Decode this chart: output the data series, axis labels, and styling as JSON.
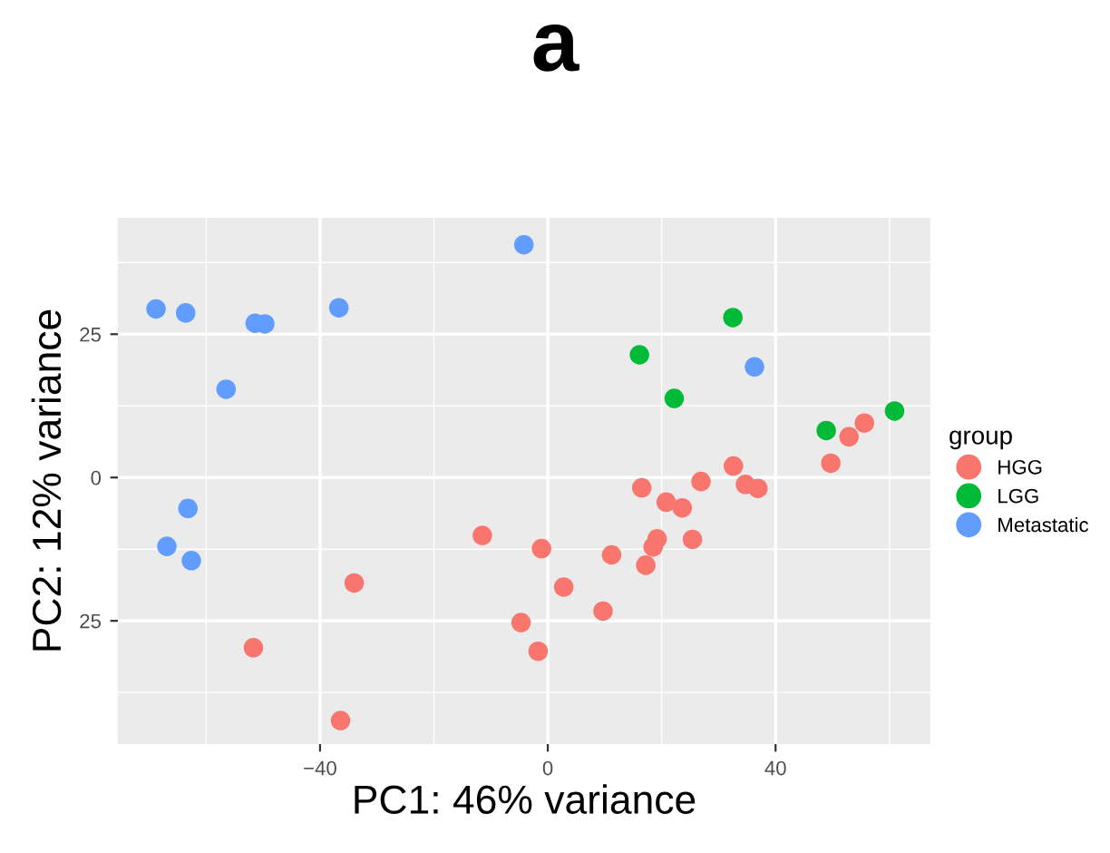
{
  "chart_data": {
    "type": "scatter",
    "title": "a",
    "xlabel": "PC1: 46% variance",
    "ylabel": "PC2: 12% variance",
    "legend_title": "group",
    "legend": "right",
    "grid": true,
    "marker": "circle",
    "xlim": [
      -75.5,
      67.2
    ],
    "ylim": [
      -46.5,
      45.3
    ],
    "xticks": [
      {
        "value": -40,
        "label": "−40"
      },
      0,
      40
    ],
    "yticks": [
      {
        "value": -25,
        "label": "25"
      },
      0,
      25
    ],
    "series": [
      {
        "name": "HGG",
        "color": "#f8766d",
        "x": [
          -11.5,
          -1.1,
          2.8,
          -34.0,
          -4.7,
          -1.7,
          -51.7,
          -36.4,
          11.2,
          9.7,
          17.2,
          18.5,
          19.2,
          25.4,
          16.5,
          20.8,
          23.6,
          26.9,
          32.6,
          34.7,
          36.9,
          49.7,
          52.9,
          55.6
        ],
        "values": [
          -10.1,
          -12.4,
          -19.1,
          -18.4,
          -25.3,
          -30.3,
          -29.7,
          -42.4,
          -13.5,
          -23.3,
          -15.3,
          -12.1,
          -10.7,
          -10.8,
          -1.8,
          -4.3,
          -5.3,
          -0.7,
          2.0,
          -1.2,
          -1.9,
          2.5,
          7.1,
          9.5
        ]
      },
      {
        "name": "LGG",
        "color": "#00ba38",
        "x": [
          32.5,
          16.1,
          22.2,
          48.9,
          60.9
        ],
        "values": [
          27.9,
          21.4,
          13.8,
          8.2,
          11.6
        ]
      },
      {
        "name": "Metastatic",
        "color": "#619cff",
        "x": [
          -68.8,
          -63.6,
          -51.4,
          -49.7,
          -36.7,
          -4.2,
          -56.5,
          -63.2,
          -66.9,
          -62.6,
          36.3
        ],
        "values": [
          29.4,
          28.7,
          26.9,
          26.8,
          29.6,
          40.6,
          15.4,
          -5.4,
          -12.0,
          -14.5,
          19.3
        ]
      }
    ]
  }
}
